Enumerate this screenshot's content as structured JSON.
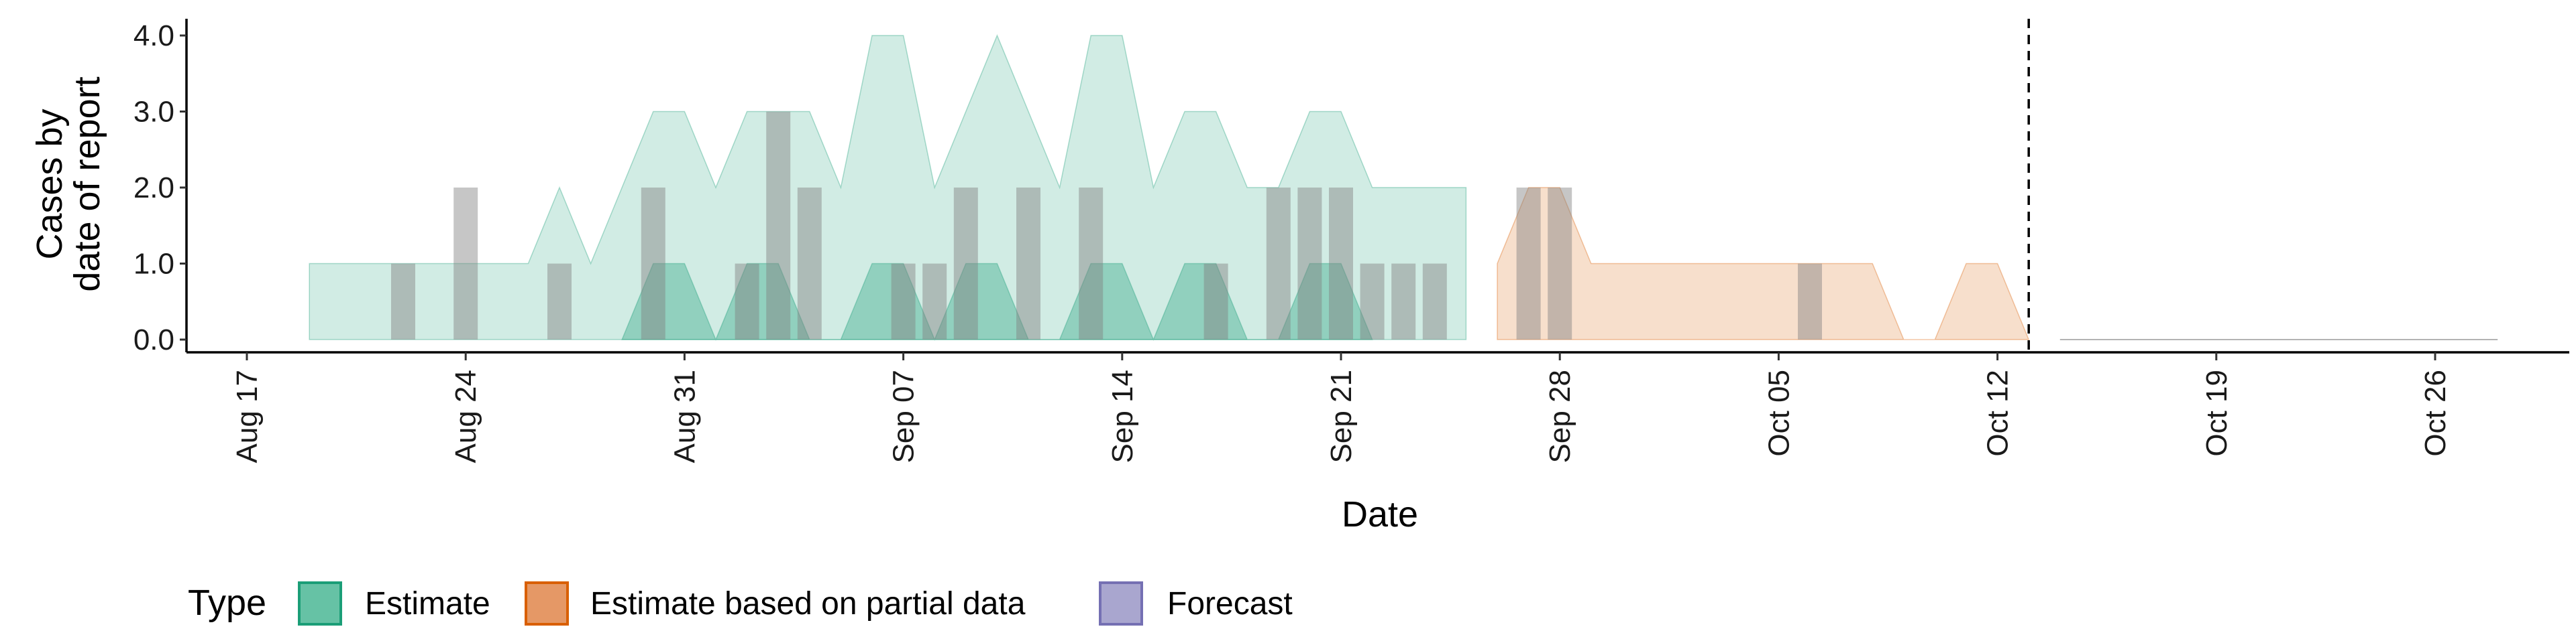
{
  "chart_data": {
    "type": "area",
    "xlabel": "Date",
    "ylabel": [
      "Cases by",
      "date of report"
    ],
    "ylim": [
      -0.2,
      4.2
    ],
    "xlim": [
      "2020-08-16",
      "2020-10-28"
    ],
    "y_ticks": [
      {
        "value": 0,
        "label": "0.0"
      },
      {
        "value": 1,
        "label": "1.0"
      },
      {
        "value": 2,
        "label": "2.0"
      },
      {
        "value": 3,
        "label": "3.0"
      },
      {
        "value": 4,
        "label": "4.0"
      }
    ],
    "x_ticks": [
      {
        "date": "2020-08-17",
        "label": "Aug 17"
      },
      {
        "date": "2020-08-24",
        "label": "Aug 24"
      },
      {
        "date": "2020-08-31",
        "label": "Aug 31"
      },
      {
        "date": "2020-09-07",
        "label": "Sep 07"
      },
      {
        "date": "2020-09-14",
        "label": "Sep 14"
      },
      {
        "date": "2020-09-21",
        "label": "Sep 21"
      },
      {
        "date": "2020-09-28",
        "label": "Sep 28"
      },
      {
        "date": "2020-10-05",
        "label": "Oct 05"
      },
      {
        "date": "2020-10-12",
        "label": "Oct 12"
      },
      {
        "date": "2020-10-19",
        "label": "Oct 19"
      },
      {
        "date": "2020-10-26",
        "label": "Oct 26"
      }
    ],
    "grid": false,
    "vline": {
      "date": "2020-10-13",
      "style": "dashed"
    },
    "legend": {
      "position": "bottom",
      "title": "Type",
      "entries": [
        {
          "label": "Estimate",
          "fill": "#66c2a5",
          "stroke": "#1b9e77"
        },
        {
          "label": "Estimate based on partial data",
          "fill": "#e59866",
          "stroke": "#d95f02"
        },
        {
          "label": "Forecast",
          "fill": "#a9a6cf",
          "stroke": "#7570b3"
        }
      ]
    },
    "colors": {
      "estimate_outer": "#1b9e77",
      "estimate_inner": "#1b9e77",
      "partial_outer": "#d95f02",
      "bars": "#808080",
      "forecast_line": "#b3b3b3"
    },
    "series": [
      {
        "type": "Estimate",
        "band": "outer",
        "x": [
          "2020-08-19",
          "2020-08-20",
          "2020-08-21",
          "2020-08-22",
          "2020-08-23",
          "2020-08-24",
          "2020-08-25",
          "2020-08-26",
          "2020-08-27",
          "2020-08-28",
          "2020-08-29",
          "2020-08-30",
          "2020-08-31",
          "2020-09-01",
          "2020-09-02",
          "2020-09-03",
          "2020-09-04",
          "2020-09-05",
          "2020-09-06",
          "2020-09-07",
          "2020-09-08",
          "2020-09-09",
          "2020-09-10",
          "2020-09-11",
          "2020-09-12",
          "2020-09-13",
          "2020-09-14",
          "2020-09-15",
          "2020-09-16",
          "2020-09-17",
          "2020-09-18",
          "2020-09-19",
          "2020-09-20",
          "2020-09-21",
          "2020-09-22",
          "2020-09-23",
          "2020-09-24",
          "2020-09-25"
        ],
        "upper": [
          1,
          1,
          1,
          1,
          1,
          1,
          1,
          1,
          2,
          1,
          2,
          3,
          3,
          2,
          3,
          3,
          3,
          2,
          4,
          4,
          2,
          3,
          4,
          3,
          2,
          4,
          4,
          2,
          3,
          3,
          2,
          2,
          3,
          3,
          2,
          2,
          2,
          2
        ],
        "lower": [
          0,
          0,
          0,
          0,
          0,
          0,
          0,
          0,
          0,
          0,
          0,
          0,
          0,
          0,
          0,
          0,
          0,
          0,
          0,
          0,
          0,
          0,
          0,
          0,
          0,
          0,
          0,
          0,
          0,
          0,
          0,
          0,
          0,
          0,
          0,
          0,
          0,
          0
        ]
      },
      {
        "type": "Estimate",
        "band": "inner",
        "x": [
          "2020-08-29",
          "2020-08-30",
          "2020-08-31",
          "2020-09-01",
          "2020-09-02",
          "2020-09-03",
          "2020-09-04",
          "2020-09-05",
          "2020-09-06",
          "2020-09-07",
          "2020-09-08",
          "2020-09-09",
          "2020-09-10",
          "2020-09-11",
          "2020-09-12",
          "2020-09-13",
          "2020-09-14",
          "2020-09-15",
          "2020-09-16",
          "2020-09-17",
          "2020-09-18",
          "2020-09-19",
          "2020-09-20",
          "2020-09-21",
          "2020-09-22"
        ],
        "upper": [
          0,
          1,
          1,
          0,
          1,
          1,
          0,
          0,
          1,
          1,
          0,
          1,
          1,
          0,
          0,
          1,
          1,
          0,
          1,
          1,
          0,
          0,
          1,
          1,
          0
        ],
        "lower": [
          0,
          0,
          0,
          0,
          0,
          0,
          0,
          0,
          0,
          0,
          0,
          0,
          0,
          0,
          0,
          0,
          0,
          0,
          0,
          0,
          0,
          0,
          0,
          0,
          0
        ]
      },
      {
        "type": "Estimate based on partial data",
        "band": "outer",
        "x": [
          "2020-09-26",
          "2020-09-27",
          "2020-09-28",
          "2020-09-29",
          "2020-09-30",
          "2020-10-01",
          "2020-10-02",
          "2020-10-03",
          "2020-10-04",
          "2020-10-05",
          "2020-10-06",
          "2020-10-07",
          "2020-10-08",
          "2020-10-09",
          "2020-10-10",
          "2020-10-11",
          "2020-10-12",
          "2020-10-13"
        ],
        "upper": [
          1,
          2,
          2,
          1,
          1,
          1,
          1,
          1,
          1,
          1,
          1,
          1,
          1,
          0,
          0,
          1,
          1,
          0
        ],
        "lower": [
          0,
          0,
          0,
          0,
          0,
          0,
          0,
          0,
          0,
          0,
          0,
          0,
          0,
          0,
          0,
          0,
          0,
          0
        ]
      },
      {
        "type": "Forecast",
        "band": "line",
        "x": [
          "2020-10-14",
          "2020-10-28"
        ],
        "upper": [
          0,
          0
        ],
        "lower": [
          0,
          0
        ]
      }
    ],
    "reported_cases": {
      "dates": [
        "2020-08-22",
        "2020-08-24",
        "2020-08-27",
        "2020-08-30",
        "2020-09-02",
        "2020-09-03",
        "2020-09-04",
        "2020-09-07",
        "2020-09-08",
        "2020-09-09",
        "2020-09-11",
        "2020-09-13",
        "2020-09-17",
        "2020-09-19",
        "2020-09-20",
        "2020-09-21",
        "2020-09-22",
        "2020-09-23",
        "2020-09-24",
        "2020-09-27",
        "2020-09-28",
        "2020-10-06"
      ],
      "values": [
        1,
        2,
        1,
        2,
        1,
        3,
        2,
        1,
        1,
        2,
        2,
        2,
        1,
        2,
        2,
        2,
        1,
        1,
        1,
        2,
        2,
        1
      ]
    }
  }
}
